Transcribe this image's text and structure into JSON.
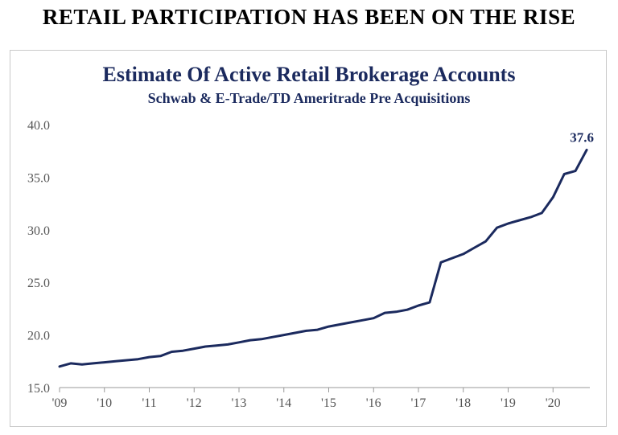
{
  "page_heading": "RETAIL PARTICIPATION HAS BEEN ON THE RISE",
  "colors": {
    "series": "#1b2a5e",
    "axis": "#999999",
    "tick_text": "#555555"
  },
  "chart_data": {
    "type": "line",
    "title": "Estimate Of Active Retail Brokerage Accounts",
    "subtitle": "Schwab & E-Trade/TD Ameritrade Pre Acquisitions",
    "xlabel": "",
    "ylabel": "",
    "x_tick_labels": [
      "'09",
      "'10",
      "'11",
      "'12",
      "'13",
      "'14",
      "'15",
      "'16",
      "'17",
      "'18",
      "'19",
      "'20"
    ],
    "y_tick_labels": [
      "15.0",
      "20.0",
      "25.0",
      "30.0",
      "35.0",
      "40.0"
    ],
    "xlim": [
      2009.0,
      2021.0
    ],
    "ylim": [
      15,
      40
    ],
    "grid": false,
    "legend": "none",
    "end_label": "37.6",
    "series": [
      {
        "x": [
          2009.0,
          2009.25,
          2009.5,
          2009.75,
          2010.0,
          2010.25,
          2010.5,
          2010.75,
          2011.0,
          2011.25,
          2011.5,
          2011.75,
          2012.0,
          2012.25,
          2012.5,
          2012.75,
          2013.0,
          2013.25,
          2013.5,
          2013.75,
          2014.0,
          2014.25,
          2014.5,
          2014.75,
          2015.0,
          2015.25,
          2015.5,
          2015.75,
          2016.0,
          2016.25,
          2016.5,
          2016.75,
          2017.0,
          2017.25,
          2017.5,
          2017.75,
          2018.0,
          2018.25,
          2018.5,
          2018.75,
          2019.0,
          2019.25,
          2019.5,
          2019.75,
          2020.0,
          2020.25,
          2020.5,
          2020.75
        ],
        "values": [
          17.0,
          17.3,
          17.2,
          17.3,
          17.4,
          17.5,
          17.6,
          17.7,
          17.9,
          18.0,
          18.4,
          18.5,
          18.7,
          18.9,
          19.0,
          19.1,
          19.3,
          19.5,
          19.6,
          19.8,
          20.0,
          20.2,
          20.4,
          20.5,
          20.8,
          21.0,
          21.2,
          21.4,
          21.6,
          22.1,
          22.2,
          22.4,
          22.8,
          23.1,
          26.9,
          27.3,
          27.7,
          28.3,
          28.9,
          30.2,
          30.6,
          30.9,
          31.2,
          31.6,
          33.1,
          35.3,
          35.6,
          37.6
        ]
      }
    ]
  }
}
